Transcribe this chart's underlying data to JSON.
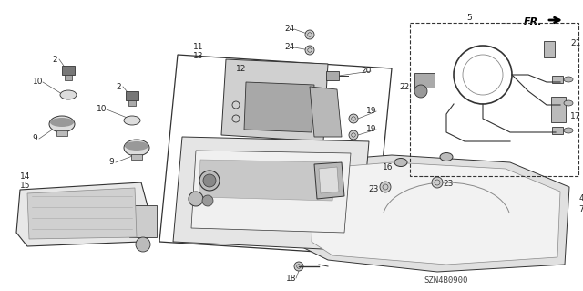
{
  "bg_color": "#ffffff",
  "diagram_code": "SZN4B0900",
  "line_color": "#333333",
  "label_color": "#222222",
  "part_fill": "#d8d8d8",
  "part_edge": "#333333"
}
